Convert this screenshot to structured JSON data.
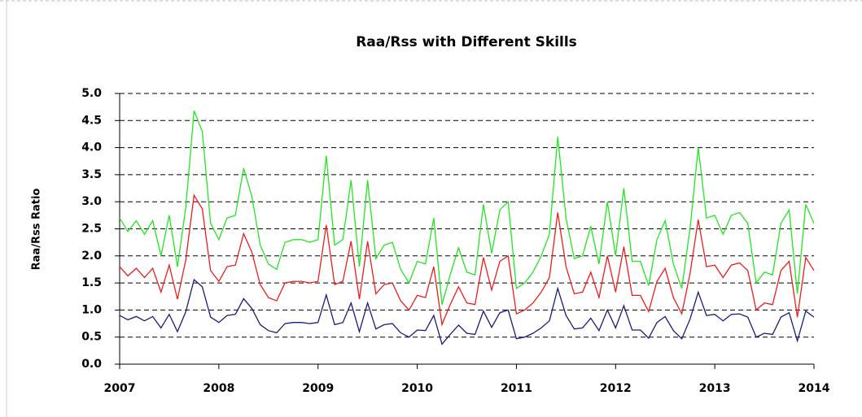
{
  "chart_data": {
    "type": "line",
    "title": "Raa/Rss with Different Skills",
    "y_label": "Raa/Rss Ratio",
    "x": [
      2007,
      2007.083,
      2007.167,
      2007.25,
      2007.333,
      2007.417,
      2007.5,
      2007.583,
      2007.667,
      2007.75,
      2007.833,
      2007.917,
      2008,
      2008.083,
      2008.167,
      2008.25,
      2008.333,
      2008.417,
      2008.5,
      2008.583,
      2008.667,
      2008.75,
      2008.833,
      2008.917,
      2009,
      2009.083,
      2009.167,
      2009.25,
      2009.333,
      2009.417,
      2009.5,
      2009.583,
      2009.667,
      2009.75,
      2009.833,
      2009.917,
      2010,
      2010.083,
      2010.167,
      2010.25,
      2010.333,
      2010.417,
      2010.5,
      2010.583,
      2010.667,
      2010.75,
      2010.833,
      2010.917,
      2011,
      2011.083,
      2011.167,
      2011.25,
      2011.333,
      2011.417,
      2011.5,
      2011.583,
      2011.667,
      2011.75,
      2011.833,
      2011.917,
      2012,
      2012.083,
      2012.167,
      2012.25,
      2012.333,
      2012.417,
      2012.5,
      2012.583,
      2012.667,
      2012.75,
      2012.833,
      2012.917,
      2013,
      2013.083,
      2013.167,
      2013.25,
      2013.333,
      2013.417,
      2013.5,
      2013.583,
      2013.667,
      2013.75,
      2013.833,
      2013.917,
      2014
    ],
    "series": [
      {
        "color": "#22e622",
        "values": [
          2.7,
          2.45,
          2.65,
          2.4,
          2.65,
          2.0,
          2.75,
          1.8,
          2.9,
          4.68,
          4.3,
          2.6,
          2.3,
          2.7,
          2.75,
          3.62,
          3.1,
          2.2,
          1.85,
          1.75,
          2.25,
          2.3,
          2.3,
          2.25,
          2.3,
          3.85,
          2.2,
          2.3,
          3.4,
          1.8,
          3.4,
          1.95,
          2.2,
          2.25,
          1.75,
          1.5,
          1.9,
          1.85,
          2.7,
          1.1,
          1.65,
          2.15,
          1.7,
          1.65,
          2.95,
          2.05,
          2.85,
          3.0,
          1.4,
          1.5,
          1.7,
          2.0,
          2.4,
          4.2,
          2.7,
          1.95,
          2.0,
          2.55,
          1.85,
          3.0,
          2.0,
          3.25,
          1.9,
          1.9,
          1.45,
          2.3,
          2.65,
          1.85,
          1.4,
          2.5,
          4.0,
          2.7,
          2.75,
          2.4,
          2.75,
          2.8,
          2.6,
          1.5,
          1.7,
          1.65,
          2.6,
          2.85,
          1.3,
          2.95,
          2.6
        ]
      },
      {
        "color": "#ee1c1c",
        "values": [
          1.8,
          1.63,
          1.77,
          1.6,
          1.77,
          1.33,
          1.83,
          1.2,
          1.93,
          3.12,
          2.87,
          1.73,
          1.53,
          1.8,
          1.83,
          2.41,
          2.07,
          1.47,
          1.23,
          1.17,
          1.5,
          1.53,
          1.53,
          1.5,
          1.53,
          2.57,
          1.47,
          1.53,
          2.27,
          1.2,
          2.27,
          1.3,
          1.47,
          1.5,
          1.17,
          1.0,
          1.27,
          1.23,
          1.8,
          0.73,
          1.1,
          1.43,
          1.13,
          1.1,
          1.97,
          1.37,
          1.9,
          2.0,
          0.93,
          1.0,
          1.13,
          1.33,
          1.6,
          2.8,
          1.8,
          1.3,
          1.33,
          1.7,
          1.23,
          2.0,
          1.33,
          2.17,
          1.27,
          1.27,
          0.97,
          1.53,
          1.77,
          1.23,
          0.93,
          1.67,
          2.67,
          1.8,
          1.83,
          1.6,
          1.83,
          1.87,
          1.73,
          1.0,
          1.13,
          1.1,
          1.73,
          1.9,
          0.87,
          1.97,
          1.73
        ]
      },
      {
        "color": "#1a1a80",
        "values": [
          0.9,
          0.82,
          0.88,
          0.8,
          0.88,
          0.67,
          0.92,
          0.6,
          0.97,
          1.56,
          1.43,
          0.87,
          0.77,
          0.9,
          0.92,
          1.21,
          1.03,
          0.73,
          0.62,
          0.58,
          0.75,
          0.77,
          0.77,
          0.75,
          0.77,
          1.28,
          0.73,
          0.77,
          1.13,
          0.6,
          1.13,
          0.65,
          0.73,
          0.75,
          0.58,
          0.5,
          0.63,
          0.62,
          0.9,
          0.37,
          0.55,
          0.72,
          0.57,
          0.55,
          0.98,
          0.68,
          0.95,
          1.0,
          0.47,
          0.5,
          0.57,
          0.67,
          0.8,
          1.4,
          0.9,
          0.65,
          0.67,
          0.85,
          0.62,
          1.0,
          0.67,
          1.08,
          0.63,
          0.63,
          0.48,
          0.77,
          0.88,
          0.62,
          0.47,
          0.83,
          1.33,
          0.9,
          0.92,
          0.8,
          0.92,
          0.93,
          0.87,
          0.5,
          0.57,
          0.55,
          0.87,
          0.95,
          0.43,
          0.98,
          0.87
        ]
      }
    ],
    "xlim": [
      2007,
      2014
    ],
    "xticks": [
      2007,
      2008,
      2009,
      2010,
      2011,
      2012,
      2013,
      2014
    ],
    "ylim": [
      0,
      5
    ],
    "yticks": [
      {
        "value": 0,
        "label": "0.0"
      },
      0.5,
      {
        "value": 1,
        "label": "1.0"
      },
      1.5,
      {
        "value": 2,
        "label": "2.0"
      },
      2.5,
      {
        "value": 3,
        "label": "3.0"
      },
      3.5,
      {
        "value": 4,
        "label": "4.0"
      },
      4.5,
      {
        "value": 5,
        "label": "5.0"
      }
    ],
    "grid": true
  }
}
